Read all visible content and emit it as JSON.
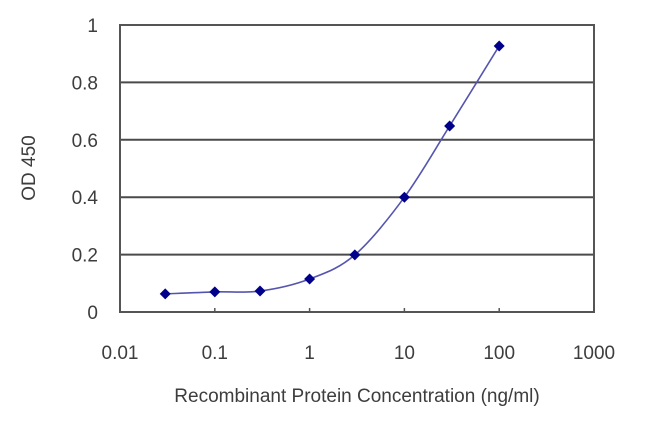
{
  "chart_data": {
    "type": "line",
    "title": "",
    "xlabel": "Recombinant Protein Concentration (ng/ml)",
    "ylabel": "OD 450",
    "x_scale": "log",
    "xlim": [
      0.01,
      1000
    ],
    "ylim": [
      0,
      1
    ],
    "x_ticks": [
      "0.01",
      "0.1",
      "1",
      "10",
      "100",
      "1000"
    ],
    "y_ticks": [
      "0",
      "0.2",
      "0.4",
      "0.6",
      "0.8",
      "1"
    ],
    "grid": "horizontal",
    "legend": null,
    "series": [
      {
        "name": "OD 450",
        "color": "#00008b",
        "line_color": "#5555b0",
        "marker": "diamond",
        "x": [
          0.03,
          0.1,
          0.3,
          1,
          3,
          10,
          30,
          100
        ],
        "y": [
          0.063,
          0.07,
          0.073,
          0.115,
          0.199,
          0.4,
          0.648,
          0.927
        ]
      }
    ]
  }
}
